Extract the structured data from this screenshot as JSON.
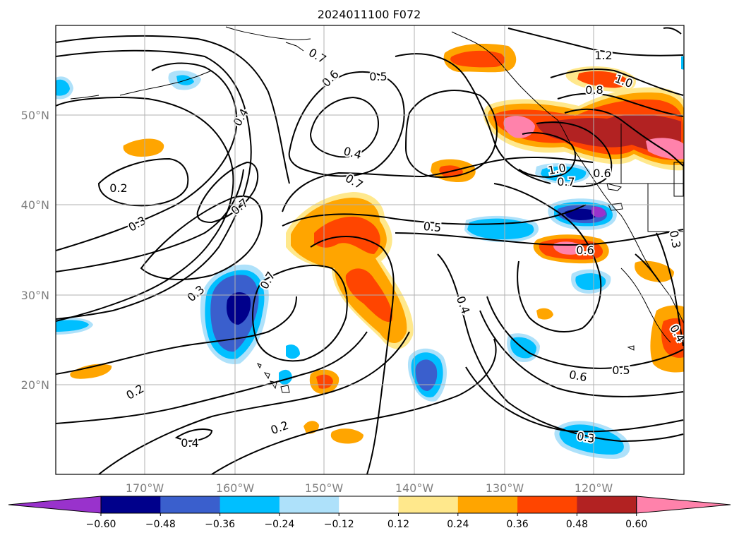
{
  "title": "2024011100 F072",
  "lon_labels": [
    "170°W",
    "160°W",
    "150°W",
    "140°W",
    "130°W",
    "120°W"
  ],
  "lat_labels": [
    "50°N",
    "40°N",
    "30°N",
    "20°N"
  ],
  "colorbar": {
    "colors": [
      "#9932cc",
      "#00008b",
      "#3a5fcd",
      "#00bfff",
      "#aee1fa",
      "#ffffff",
      "#ffe88c",
      "#ffa500",
      "#ff4500",
      "#b22222",
      "#ff82ab"
    ],
    "tick_labels": [
      "−0.60",
      "−0.48",
      "−0.36",
      "−0.24",
      "−0.12",
      "0.12",
      "0.24",
      "0.36",
      "0.48",
      "0.60"
    ]
  },
  "contour_labels": [
    "0.7",
    "0.6",
    "0.5",
    "0.4",
    "1.2",
    "1.0",
    "0.8",
    "0.4",
    "0.2",
    "0.7",
    "1.0",
    "0.6",
    "0.7",
    "0.3",
    "0.7",
    "0.5",
    "0.6",
    "0.3",
    "0.7",
    "0.3",
    "0.4",
    "0.4",
    "0.6",
    "0.5",
    "0.2",
    "0.4",
    "0.2",
    "0.3"
  ]
}
